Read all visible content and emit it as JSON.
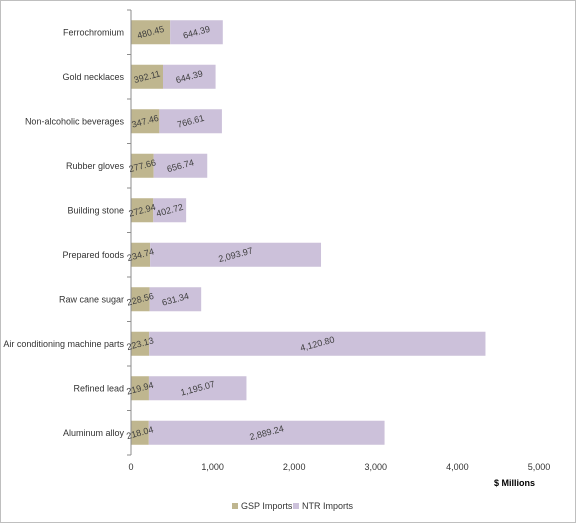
{
  "chart_data": {
    "type": "bar",
    "orientation": "horizontal",
    "stacked": true,
    "categories": [
      "Ferrochromium",
      "Gold necklaces",
      "Non-alcoholic beverages",
      "Rubber gloves",
      "Building stone",
      "Prepared foods",
      "Raw cane sugar",
      "Air conditioning machine parts",
      "Refined lead",
      "Aluminum alloy"
    ],
    "series": [
      {
        "name": "GSP Imports",
        "color": "#bfb68f",
        "values": [
          480.45,
          392.11,
          347.46,
          277.66,
          272.94,
          234.74,
          228.56,
          223.13,
          219.94,
          218.04
        ],
        "labels": [
          "480.45",
          "392.11",
          "347.46",
          "277.66",
          "272.94",
          "234.74",
          "228.56",
          "223.13",
          "219.94",
          "218.04"
        ]
      },
      {
        "name": "NTR Imports",
        "color": "#ccc1da",
        "values": [
          644.39,
          644.39,
          766.61,
          656.74,
          402.72,
          2093.97,
          631.34,
          4120.8,
          1195.07,
          2889.24
        ],
        "labels": [
          "644.39",
          "644.39",
          "766.61",
          "656.74",
          "402.72",
          "2,093.97",
          "631.34",
          "4,120.80",
          "1,195.07",
          "2,889.24"
        ]
      }
    ],
    "xlabel": "$ Millions",
    "xlim": [
      0,
      5000
    ],
    "xticks": [
      0,
      1000,
      2000,
      3000,
      4000,
      5000
    ],
    "xtick_labels": [
      "0",
      "1,000",
      "2,000",
      "3,000",
      "4,000",
      "5,000"
    ],
    "grid": false,
    "legend_position": "bottom"
  }
}
